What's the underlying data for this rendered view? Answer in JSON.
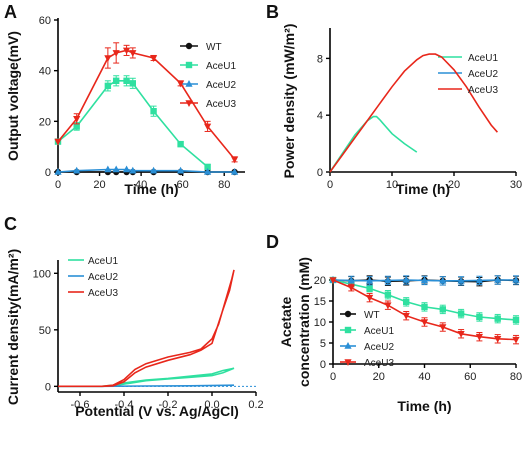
{
  "chart_data": [
    {
      "panel": "A",
      "type": "line",
      "xlabel": "Time (h)",
      "ylabel": "Output voltage(mV)",
      "xlim": [
        0,
        90
      ],
      "ylim": [
        0,
        60
      ],
      "xticks": [
        0,
        20,
        40,
        60,
        80
      ],
      "yticks": [
        0,
        20,
        40,
        60
      ],
      "legend": "top-right",
      "series": [
        {
          "name": "WT",
          "color": "#111111",
          "marker": "circle",
          "x": [
            0,
            9,
            24,
            28,
            33,
            36,
            46,
            59,
            72,
            85
          ],
          "y": [
            0,
            0,
            0,
            0,
            0,
            0,
            0,
            0,
            0,
            0
          ],
          "err": [
            0,
            0,
            0,
            0,
            0,
            0,
            0,
            0,
            0,
            0
          ]
        },
        {
          "name": "AceU1",
          "color": "#2fe0a0",
          "marker": "square",
          "x": [
            0,
            9,
            24,
            28,
            33,
            36,
            46,
            59,
            72
          ],
          "y": [
            12,
            18,
            34,
            36,
            36,
            35,
            24,
            11,
            2
          ],
          "err": [
            0,
            1.5,
            2,
            2,
            2,
            2,
            2,
            1,
            1
          ]
        },
        {
          "name": "AceU2",
          "color": "#2a8fd6",
          "marker": "triangle-up",
          "x": [
            0,
            9,
            24,
            28,
            33,
            36,
            46,
            59,
            72,
            85
          ],
          "y": [
            0,
            0.5,
            1,
            1,
            1,
            0.5,
            0.5,
            0.5,
            0,
            0
          ],
          "err": [
            0,
            0,
            0,
            0,
            0,
            0,
            0,
            0,
            0,
            0
          ]
        },
        {
          "name": "AceU3",
          "color": "#e8271b",
          "marker": "triangle-down",
          "x": [
            0,
            9,
            24,
            28,
            33,
            36,
            46,
            59,
            72,
            85
          ],
          "y": [
            12,
            21,
            45,
            47,
            48,
            47,
            45,
            35,
            18,
            5
          ],
          "err": [
            0,
            2,
            4,
            4,
            2,
            2,
            1,
            1,
            2,
            1
          ]
        }
      ]
    },
    {
      "panel": "B",
      "type": "line",
      "xlabel": "Time (h)",
      "ylabel": "Power density (mW/m²)",
      "xlim": [
        0,
        30
      ],
      "ylim": [
        0,
        10
      ],
      "xticks": [
        0,
        10,
        20,
        30
      ],
      "yticks": [
        0,
        4,
        8
      ],
      "legend": "top-right",
      "series": [
        {
          "name": "AceU1",
          "color": "#2fe0a0",
          "x": [
            0,
            2,
            4,
            6,
            7,
            7.5,
            8,
            9,
            10,
            12,
            14
          ],
          "y": [
            0,
            1.3,
            2.6,
            3.6,
            3.9,
            3.9,
            3.7,
            3.2,
            2.7,
            2.0,
            1.4
          ]
        },
        {
          "name": "AceU2",
          "color": "#2a8fd6",
          "x": [],
          "y": []
        },
        {
          "name": "AceU3",
          "color": "#e8271b",
          "x": [
            0,
            2,
            4,
            6,
            8,
            10,
            12,
            14,
            15,
            16,
            17,
            18,
            20,
            22,
            24,
            26,
            27
          ],
          "y": [
            0,
            1.2,
            2.4,
            3.6,
            4.8,
            6.0,
            7.1,
            7.9,
            8.2,
            8.3,
            8.3,
            8.1,
            7.2,
            6.0,
            4.6,
            3.3,
            2.8
          ]
        }
      ]
    },
    {
      "panel": "C",
      "type": "line",
      "xlabel": "Potential (V vs. Ag/AgCl)",
      "ylabel": "Current density(mA/m²)",
      "xlim": [
        -0.7,
        0.2
      ],
      "ylim": [
        -5,
        110
      ],
      "xticks": [
        -0.6,
        -0.4,
        -0.2,
        0.0,
        0.2
      ],
      "yticks": [
        0,
        50,
        100
      ],
      "legend": "top-left",
      "series": [
        {
          "name": "AceU1",
          "color": "#2fe0a0",
          "x": [
            -0.7,
            -0.5,
            -0.45,
            -0.4,
            -0.3,
            -0.2,
            -0.1,
            0.0,
            0.05,
            0.1,
            0.05,
            0.0,
            -0.1,
            -0.2,
            -0.3,
            -0.4,
            -0.45,
            -0.5,
            -0.7
          ],
          "y": [
            0,
            0,
            0.5,
            2,
            5,
            6.5,
            8,
            9.5,
            12,
            16,
            14,
            11,
            9,
            7,
            5.5,
            3,
            1,
            0,
            0
          ]
        },
        {
          "name": "AceU2",
          "color": "#2a8fd6",
          "x": [
            -0.7,
            -0.5,
            -0.3,
            -0.1,
            0.1,
            -0.1,
            -0.3,
            -0.5,
            -0.7
          ],
          "y": [
            0,
            0,
            0.3,
            0.5,
            1,
            0.5,
            0.3,
            0,
            0
          ]
        },
        {
          "name": "AceU3",
          "color": "#e8271b",
          "x": [
            -0.7,
            -0.5,
            -0.45,
            -0.4,
            -0.35,
            -0.3,
            -0.2,
            -0.1,
            -0.05,
            0.0,
            0.03,
            0.06,
            0.09,
            0.1,
            0.08,
            0.05,
            0.02,
            0.0,
            -0.05,
            -0.1,
            -0.2,
            -0.3,
            -0.35,
            -0.4,
            -0.45,
            -0.5,
            -0.7
          ],
          "y": [
            0,
            0,
            1,
            6,
            15,
            20,
            26,
            30,
            33,
            42,
            55,
            75,
            95,
            103,
            85,
            68,
            50,
            38,
            32,
            28,
            23,
            17,
            12,
            4,
            0.5,
            0,
            0
          ]
        }
      ]
    },
    {
      "panel": "D",
      "type": "line",
      "xlabel": "Time (h)",
      "ylabel": "Acetate concentration (mM)",
      "xlim": [
        0,
        80
      ],
      "ylim": [
        0,
        20
      ],
      "xticks": [
        0,
        20,
        40,
        60,
        80
      ],
      "yticks": [
        0,
        5,
        10,
        15,
        20
      ],
      "legend": "bottom-left",
      "series": [
        {
          "name": "WT",
          "color": "#111111",
          "marker": "circle",
          "x": [
            0,
            8,
            16,
            24,
            32,
            40,
            48,
            56,
            64,
            72,
            80
          ],
          "y": [
            20,
            19.8,
            20,
            19.7,
            19.8,
            20,
            19.8,
            19.7,
            19.6,
            20,
            19.9
          ],
          "err": [
            0,
            1,
            1,
            1,
            1,
            1,
            1,
            1,
            1,
            1,
            1
          ]
        },
        {
          "name": "AceU1",
          "color": "#2fe0a0",
          "marker": "square",
          "x": [
            0,
            8,
            16,
            24,
            32,
            40,
            48,
            56,
            64,
            72,
            80
          ],
          "y": [
            20,
            19,
            18,
            16.5,
            14.8,
            13.6,
            13,
            12,
            11.2,
            10.8,
            10.5
          ],
          "err": [
            0,
            0.5,
            0.8,
            1,
            1,
            1,
            1,
            1,
            1,
            1,
            1
          ]
        },
        {
          "name": "AceU2",
          "color": "#2a8fd6",
          "marker": "triangle-up",
          "x": [
            0,
            8,
            16,
            24,
            32,
            40,
            48,
            56,
            64,
            72,
            80
          ],
          "y": [
            20,
            19.9,
            19.8,
            19.9,
            20,
            19.9,
            19.8,
            19.8,
            19.9,
            20,
            20
          ],
          "err": [
            0,
            1,
            1,
            1,
            1,
            1,
            1,
            1,
            1,
            1,
            1
          ]
        },
        {
          "name": "AceU3",
          "color": "#e8271b",
          "marker": "triangle-down",
          "x": [
            0,
            8,
            16,
            24,
            32,
            40,
            48,
            56,
            64,
            72,
            80
          ],
          "y": [
            20,
            18.2,
            15.8,
            14,
            11.5,
            10,
            8.8,
            7.2,
            6.5,
            6,
            5.8
          ],
          "err": [
            0,
            0.8,
            1,
            1,
            1,
            1,
            1,
            1,
            1,
            1,
            1
          ]
        }
      ]
    }
  ]
}
